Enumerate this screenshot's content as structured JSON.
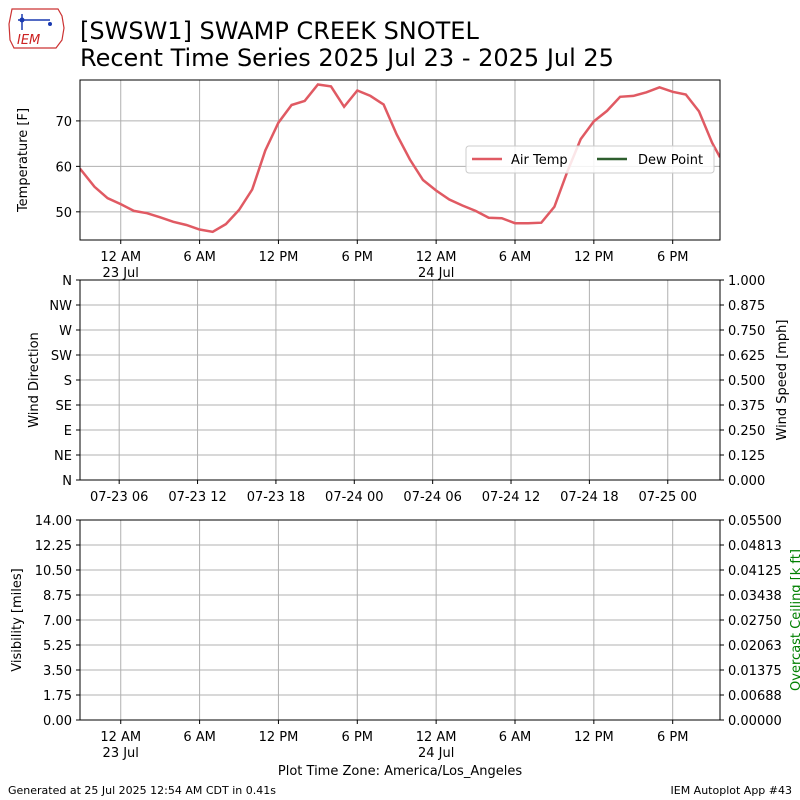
{
  "header": {
    "title_line1": "[SWSW1] SWAMP CREEK SNOTEL",
    "title_line2": "Recent Time Series 2025 Jul 23 - 2025 Jul 25",
    "logo_text": "IEM"
  },
  "footer": {
    "generated": "Generated at 25 Jul 2025 12:54 AM CDT in 0.41s",
    "app": "IEM Autoplot App #43"
  },
  "xlabel": "Plot Time Zone: America/Los_Angeles",
  "colors": {
    "air_temp": "#e05a63",
    "dew_point": "#2e5e2e",
    "grid": "#b0b0b0",
    "ceiling_label": "#008000"
  },
  "chart_data": [
    {
      "type": "line",
      "ylabel": "Temperature [F]",
      "yticks": [
        "50",
        "60",
        "70"
      ],
      "ytick_values": [
        50,
        60,
        70
      ],
      "ylim": [
        43.8,
        79.0
      ],
      "xlim_hours": [
        -6.1,
        42.6
      ],
      "x_tick_labels": [
        "12 AM",
        "6 AM",
        "12 PM",
        "6 PM",
        "12 AM",
        "6 AM",
        "12 PM",
        "6 PM"
      ],
      "x_tick_hours": [
        -3,
        3,
        9,
        15,
        21,
        27,
        33,
        39
      ],
      "x_sublabels": [
        {
          "text": "23 Jul",
          "hour": -3
        },
        {
          "text": "24 Jul",
          "hour": 21
        }
      ],
      "legend": {
        "position": "right",
        "entries": [
          "Air Temp",
          "Dew Point"
        ]
      },
      "series": [
        {
          "name": "Air Temp",
          "x_hours": [
            -6.1,
            -5,
            -4,
            -3,
            -2,
            -1,
            0,
            1,
            2,
            3,
            4,
            5,
            6,
            7,
            8,
            9,
            10,
            11,
            12,
            13,
            14,
            15,
            16,
            17,
            18,
            19,
            20,
            21,
            22,
            23,
            24,
            25,
            26,
            27,
            28,
            29,
            30,
            31,
            32,
            33,
            34,
            35,
            36,
            37,
            38,
            39,
            40,
            41,
            42,
            42.6
          ],
          "values": [
            59.5,
            55.5,
            53,
            51.7,
            50.2,
            49.7,
            48.8,
            47.8,
            47.1,
            46.1,
            45.6,
            47.3,
            50.4,
            54.9,
            63.5,
            69.6,
            73.5,
            74.4,
            78.0,
            77.6,
            73.1,
            76.7,
            75.5,
            73.6,
            67,
            61.5,
            57,
            54.7,
            52.7,
            51.4,
            50.2,
            48.7,
            48.6,
            47.5,
            47.5,
            47.6,
            51.1,
            59,
            66,
            69.9,
            72.2,
            75.3,
            75.5,
            76.3,
            77.4,
            76.4,
            75.8,
            72.1,
            65.2,
            62
          ]
        },
        {
          "name": "Dew Point",
          "x_hours": [],
          "values": []
        }
      ]
    },
    {
      "type": "line",
      "ylabel": "Wind Direction",
      "ylabel_right": "Wind Speed [mph]",
      "yticks_left": [
        "N",
        "NE",
        "E",
        "SE",
        "S",
        "SW",
        "W",
        "NW",
        "N"
      ],
      "yticks_right": [
        "0.000",
        "0.125",
        "0.250",
        "0.375",
        "0.500",
        "0.625",
        "0.750",
        "0.875",
        "1.000"
      ],
      "ylim_right": [
        0,
        1
      ],
      "x_tick_labels": [
        "07-23 06",
        "07-23 12",
        "07-23 18",
        "07-24 00",
        "07-24 06",
        "07-24 12",
        "07-24 18",
        "07-25 00"
      ],
      "x_tick_hours": [
        3,
        9,
        15,
        21,
        27,
        33,
        39,
        45
      ],
      "xlim_hours": [
        0,
        49
      ],
      "series": []
    },
    {
      "type": "line",
      "ylabel": "Visibility [miles]",
      "ylabel_right": "Overcast Ceiling [k ft]",
      "yticks_left": [
        "0.00",
        "1.75",
        "3.50",
        "5.25",
        "7.00",
        "8.75",
        "10.50",
        "12.25",
        "14.00"
      ],
      "yticks_right": [
        "0.00000",
        "0.00688",
        "0.01375",
        "0.02063",
        "0.02750",
        "0.03438",
        "0.04125",
        "0.04813",
        "0.05500"
      ],
      "ylim": [
        0,
        14
      ],
      "ylim_right": [
        0,
        0.055
      ],
      "x_tick_labels": [
        "12 AM",
        "6 AM",
        "12 PM",
        "6 PM",
        "12 AM",
        "6 AM",
        "12 PM",
        "6 PM"
      ],
      "x_tick_hours": [
        -3,
        3,
        9,
        15,
        21,
        27,
        33,
        39
      ],
      "x_sublabels": [
        {
          "text": "23 Jul",
          "hour": -3
        },
        {
          "text": "24 Jul",
          "hour": 21
        }
      ],
      "xlim_hours": [
        -6.1,
        42.6
      ],
      "series": []
    }
  ]
}
